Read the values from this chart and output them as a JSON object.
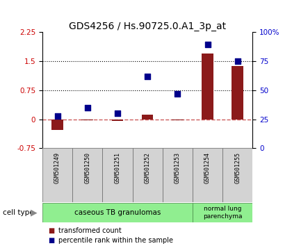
{
  "title": "GDS4256 / Hs.90725.0.A1_3p_at",
  "samples": [
    "GSM501249",
    "GSM501250",
    "GSM501251",
    "GSM501252",
    "GSM501253",
    "GSM501254",
    "GSM501255"
  ],
  "transformed_count": [
    -0.28,
    -0.03,
    -0.05,
    0.12,
    -0.02,
    1.7,
    1.38
  ],
  "percentile_rank": [
    28,
    35,
    30,
    62,
    47,
    89,
    75
  ],
  "ylim_left": [
    -0.75,
    2.25
  ],
  "ylim_right": [
    0,
    100
  ],
  "yticks_left": [
    -0.75,
    0,
    0.75,
    1.5,
    2.25
  ],
  "yticks_right": [
    0,
    25,
    50,
    75,
    100
  ],
  "hlines": [
    0.75,
    1.5
  ],
  "bar_color": "#8B1A1A",
  "scatter_color": "#00008B",
  "dashed_zero_color": "#CD5C5C",
  "group1_label": "caseous TB granulomas",
  "group1_samples": 5,
  "group2_label": "normal lung\nparenchyma",
  "group2_samples": 2,
  "cell_type_label": "cell type",
  "legend_bar_label": "transformed count",
  "legend_scatter_label": "percentile rank within the sample",
  "group_bg_color": "#90EE90",
  "sample_bg_color": "#D3D3D3",
  "title_fontsize": 10,
  "tick_fontsize": 7.5,
  "label_fontsize": 7.5
}
